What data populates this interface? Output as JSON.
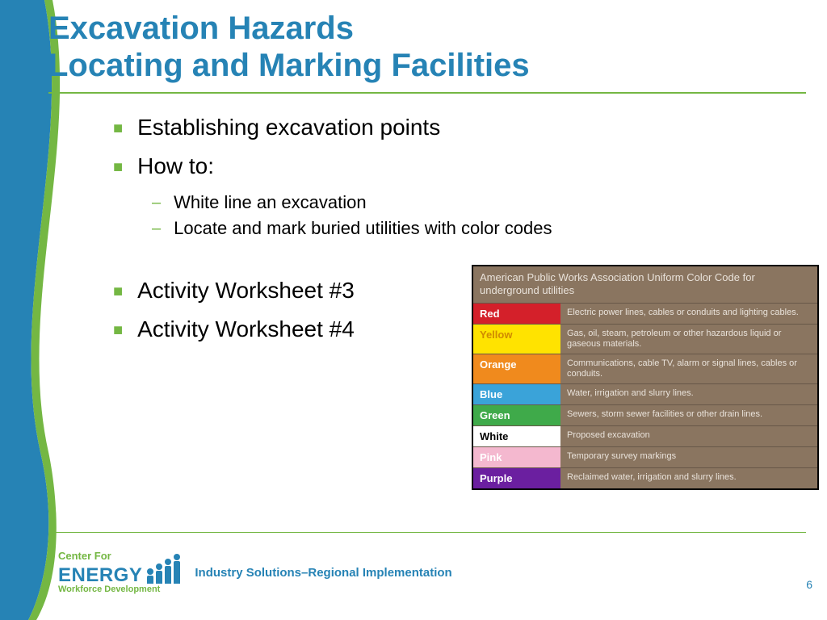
{
  "title_line1": "Excavation Hazards",
  "title_line2": "Locating and Marking Facilities",
  "bullets": {
    "b1": "Establishing excavation points",
    "b2": "How to:",
    "b2a": "White line an excavation",
    "b2b": "Locate and mark buried utilities with color codes",
    "b3": "Activity Worksheet #3",
    "b4": "Activity Worksheet #4"
  },
  "color_table": {
    "header": "American Public Works Association Uniform Color Code for underground utilities",
    "rows": [
      {
        "label": "Red",
        "label_color": "#ffffff",
        "swatch": "#d4202a",
        "desc": "Electric power lines, cables or conduits and lighting cables."
      },
      {
        "label": "Yellow",
        "label_color": "#d08a00",
        "swatch": "#ffe300",
        "desc": "Gas, oil, steam, petroleum or other hazardous liquid or gaseous materials."
      },
      {
        "label": "Orange",
        "label_color": "#ffffff",
        "swatch": "#f08a1d",
        "desc": "Communications, cable TV, alarm or signal lines, cables or conduits."
      },
      {
        "label": "Blue",
        "label_color": "#ffffff",
        "swatch": "#3aa3d9",
        "desc": "Water, irrigation and slurry lines."
      },
      {
        "label": "Green",
        "label_color": "#ffffff",
        "swatch": "#3faa4a",
        "desc": "Sewers, storm sewer facilities or other drain lines."
      },
      {
        "label": "White",
        "label_color": "#000000",
        "swatch": "#ffffff",
        "desc": "Proposed excavation"
      },
      {
        "label": "Pink",
        "label_color": "#ffffff",
        "swatch": "#f4b8cf",
        "desc": "Temporary survey markings"
      },
      {
        "label": "Purple",
        "label_color": "#ffffff",
        "swatch": "#6b1fa0",
        "desc": "Reclaimed water, irrigation and slurry lines."
      }
    ]
  },
  "footer": {
    "center_for": "Center For",
    "energy": "ENERGY",
    "workforce": "Workforce Development",
    "tagline": "Industry Solutions–Regional Implementation"
  },
  "page_number": "6",
  "colors": {
    "accent_blue": "#2683b5",
    "accent_green": "#74b743"
  }
}
